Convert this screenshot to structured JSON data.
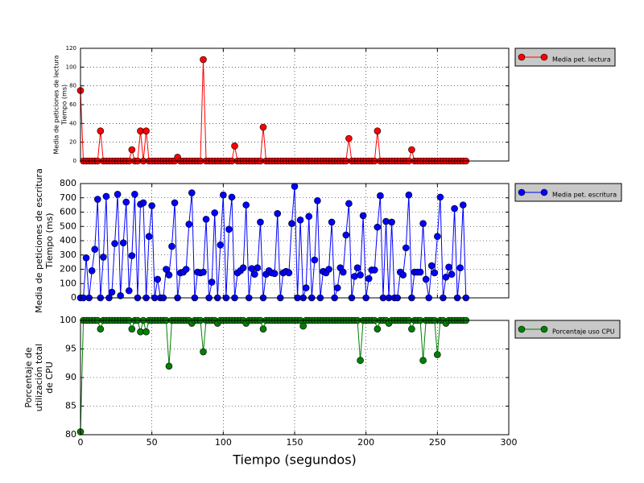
{
  "chart_data": [
    {
      "type": "line",
      "ylabel": [
        "Media de peticiones de lectura",
        "Tiempo (ms)"
      ],
      "x": [
        0,
        2,
        4,
        6,
        8,
        10,
        12,
        14,
        16,
        18,
        20,
        22,
        24,
        26,
        28,
        30,
        32,
        34,
        36,
        38,
        40,
        42,
        44,
        46,
        48,
        50,
        52,
        54,
        56,
        58,
        60,
        62,
        64,
        66,
        68,
        70,
        72,
        74,
        76,
        78,
        80,
        82,
        84,
        86,
        88,
        90,
        92,
        94,
        96,
        98,
        100,
        102,
        104,
        106,
        108,
        110,
        112,
        114,
        116,
        118,
        120,
        122,
        124,
        126,
        128,
        130,
        132,
        134,
        136,
        138,
        140,
        142,
        144,
        146,
        148,
        150,
        152,
        154,
        156,
        158,
        160,
        162,
        164,
        166,
        168,
        170,
        172,
        174,
        176,
        178,
        180,
        182,
        184,
        186,
        188,
        190,
        192,
        194,
        196,
        198,
        200,
        202,
        204,
        206,
        208,
        210,
        212,
        214,
        216,
        218,
        220,
        222,
        224,
        226,
        228,
        230,
        232,
        234,
        236,
        238,
        240,
        242,
        244,
        246,
        248,
        250,
        252,
        254,
        256,
        258,
        260,
        262,
        264,
        266,
        268,
        270
      ],
      "series": [
        {
          "name": "Media pet. lectura",
          "color": "#ff0000",
          "values": [
            75,
            0,
            0,
            0,
            0,
            0,
            0,
            32,
            0,
            0,
            0,
            0,
            0,
            0,
            0,
            0,
            0,
            0,
            12,
            0,
            0,
            32,
            0,
            32,
            0,
            0,
            0,
            0,
            0,
            0,
            0,
            0,
            0,
            0,
            4,
            0,
            0,
            0,
            0,
            0,
            0,
            0,
            0,
            108,
            0,
            0,
            0,
            0,
            0,
            0,
            0,
            0,
            0,
            0,
            16,
            0,
            0,
            0,
            0,
            0,
            0,
            0,
            0,
            0,
            36,
            0,
            0,
            0,
            0,
            0,
            0,
            0,
            0,
            0,
            0,
            0,
            0,
            0,
            0,
            0,
            0,
            0,
            0,
            0,
            0,
            0,
            0,
            0,
            0,
            0,
            0,
            0,
            0,
            0,
            24,
            0,
            0,
            0,
            0,
            0,
            0,
            0,
            0,
            0,
            32,
            0,
            0,
            0,
            0,
            0,
            0,
            0,
            0,
            0,
            0,
            0,
            12,
            0,
            0,
            0,
            0,
            0,
            0,
            0,
            0,
            0,
            0,
            0,
            0,
            0,
            0,
            0,
            0,
            0,
            0,
            0
          ]
        }
      ],
      "ylim": [
        0,
        120
      ],
      "yticks": [
        0,
        20,
        40,
        60,
        80,
        100,
        120
      ],
      "grid": true
    },
    {
      "type": "line",
      "ylabel": [
        "Media de peticiones de escritura",
        "Tiempo (ms)"
      ],
      "x": [
        0,
        2,
        4,
        6,
        8,
        10,
        12,
        14,
        16,
        18,
        20,
        22,
        24,
        26,
        28,
        30,
        32,
        34,
        36,
        38,
        40,
        42,
        44,
        46,
        48,
        50,
        52,
        54,
        56,
        58,
        60,
        62,
        64,
        66,
        68,
        70,
        72,
        74,
        76,
        78,
        80,
        82,
        84,
        86,
        88,
        90,
        92,
        94,
        96,
        98,
        100,
        102,
        104,
        106,
        108,
        110,
        112,
        114,
        116,
        118,
        120,
        122,
        124,
        126,
        128,
        130,
        132,
        134,
        136,
        138,
        140,
        142,
        144,
        146,
        148,
        150,
        152,
        154,
        156,
        158,
        160,
        162,
        164,
        166,
        168,
        170,
        172,
        174,
        176,
        178,
        180,
        182,
        184,
        186,
        188,
        190,
        192,
        194,
        196,
        198,
        200,
        202,
        204,
        206,
        208,
        210,
        212,
        214,
        216,
        218,
        220,
        222,
        224,
        226,
        228,
        230,
        232,
        234,
        236,
        238,
        240,
        242,
        244,
        246,
        248,
        250,
        252,
        254,
        256,
        258,
        260,
        262,
        264,
        266,
        268,
        270
      ],
      "series": [
        {
          "name": "Media pet. escritura",
          "color": "#0000ff",
          "values": [
            0,
            0,
            280,
            0,
            190,
            340,
            690,
            0,
            285,
            710,
            0,
            40,
            380,
            725,
            15,
            385,
            670,
            50,
            295,
            725,
            0,
            655,
            665,
            0,
            430,
            645,
            0,
            130,
            0,
            0,
            200,
            160,
            360,
            665,
            0,
            175,
            180,
            200,
            515,
            735,
            0,
            180,
            175,
            180,
            550,
            0,
            110,
            595,
            0,
            370,
            720,
            0,
            480,
            705,
            0,
            175,
            190,
            210,
            650,
            0,
            205,
            165,
            210,
            530,
            0,
            165,
            190,
            175,
            170,
            590,
            0,
            175,
            185,
            175,
            520,
            780,
            0,
            545,
            0,
            70,
            570,
            0,
            265,
            680,
            0,
            185,
            175,
            200,
            530,
            0,
            70,
            210,
            180,
            440,
            660,
            0,
            150,
            210,
            160,
            575,
            0,
            135,
            195,
            195,
            495,
            715,
            0,
            535,
            0,
            530,
            0,
            0,
            180,
            160,
            350,
            720,
            0,
            180,
            180,
            180,
            520,
            130,
            0,
            225,
            175,
            430,
            705,
            0,
            145,
            215,
            165,
            625,
            0,
            210,
            650,
            0
          ]
        }
      ],
      "ylim": [
        0,
        800
      ],
      "yticks": [
        0,
        100,
        200,
        300,
        400,
        500,
        600,
        700,
        800
      ],
      "grid": true
    },
    {
      "type": "line",
      "ylabel": [
        "Porcentaje de",
        "utilización total",
        "de CPU"
      ],
      "xlabel": "Tiempo (segundos)",
      "x": [
        0,
        2,
        4,
        6,
        8,
        10,
        12,
        14,
        16,
        18,
        20,
        22,
        24,
        26,
        28,
        30,
        32,
        34,
        36,
        38,
        40,
        42,
        44,
        46,
        48,
        50,
        52,
        54,
        56,
        58,
        60,
        62,
        64,
        66,
        68,
        70,
        72,
        74,
        76,
        78,
        80,
        82,
        84,
        86,
        88,
        90,
        92,
        94,
        96,
        98,
        100,
        102,
        104,
        106,
        108,
        110,
        112,
        114,
        116,
        118,
        120,
        122,
        124,
        126,
        128,
        130,
        132,
        134,
        136,
        138,
        140,
        142,
        144,
        146,
        148,
        150,
        152,
        154,
        156,
        158,
        160,
        162,
        164,
        166,
        168,
        170,
        172,
        174,
        176,
        178,
        180,
        182,
        184,
        186,
        188,
        190,
        192,
        194,
        196,
        198,
        200,
        202,
        204,
        206,
        208,
        210,
        212,
        214,
        216,
        218,
        220,
        222,
        224,
        226,
        228,
        230,
        232,
        234,
        236,
        238,
        240,
        242,
        244,
        246,
        248,
        250,
        252,
        254,
        256,
        258,
        260,
        262,
        264,
        266,
        268,
        270
      ],
      "series": [
        {
          "name": "Porcentaje uso CPU",
          "color": "#008000",
          "values": [
            80.5,
            100,
            100,
            100,
            100,
            100,
            100,
            98.5,
            100,
            100,
            100,
            100,
            100,
            100,
            100,
            100,
            100,
            100,
            98.5,
            100,
            100,
            98,
            100,
            98,
            100,
            100,
            100,
            100,
            100,
            100,
            100,
            92,
            100,
            100,
            100,
            100,
            100,
            100,
            100,
            99.5,
            100,
            100,
            100,
            94.5,
            100,
            100,
            100,
            100,
            99.5,
            100,
            100,
            100,
            100,
            100,
            100,
            100,
            100,
            100,
            99.5,
            100,
            100,
            100,
            100,
            100,
            98.5,
            100,
            100,
            100,
            100,
            100,
            100,
            100,
            100,
            100,
            100,
            100,
            100,
            100,
            99,
            100,
            100,
            100,
            100,
            100,
            100,
            100,
            100,
            100,
            100,
            100,
            100,
            100,
            100,
            100,
            100,
            100,
            100,
            100,
            93,
            100,
            100,
            100,
            100,
            100,
            98.5,
            100,
            100,
            100,
            99.5,
            100,
            100,
            100,
            100,
            100,
            100,
            100,
            98.5,
            100,
            100,
            100,
            93,
            100,
            100,
            100,
            100,
            94,
            100,
            100,
            99.5,
            100,
            100,
            100,
            100,
            100,
            100,
            100
          ]
        }
      ],
      "xlim": [
        0,
        300
      ],
      "xticks": [
        0,
        50,
        100,
        150,
        200,
        250,
        300
      ],
      "ylim": [
        80,
        100
      ],
      "yticks": [
        80,
        85,
        90,
        95,
        100
      ],
      "grid": true
    }
  ]
}
